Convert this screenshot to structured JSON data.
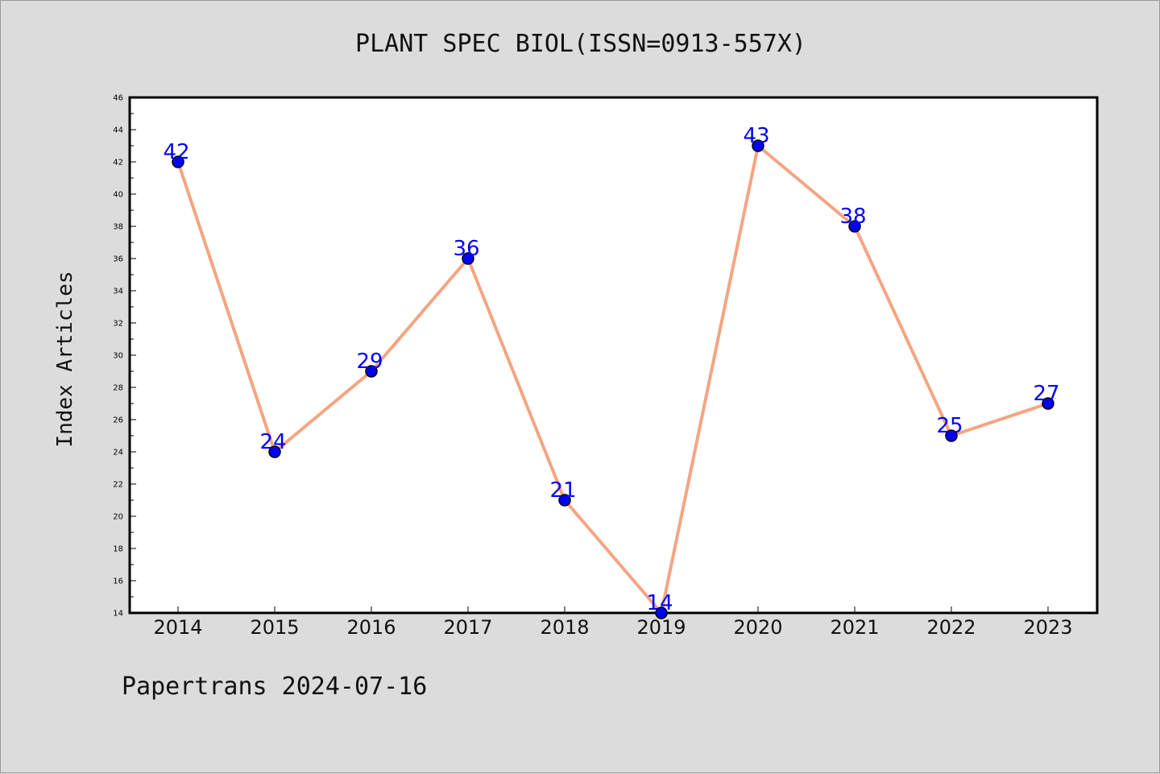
{
  "chart_data": {
    "type": "line",
    "title": "PLANT SPEC BIOL(ISSN=0913-557X)",
    "xlabel": "",
    "ylabel": "Index Articles",
    "categories": [
      "2014",
      "2015",
      "2016",
      "2017",
      "2018",
      "2019",
      "2020",
      "2021",
      "2022",
      "2023"
    ],
    "values": [
      42,
      24,
      29,
      36,
      21,
      14,
      43,
      38,
      25,
      27
    ],
    "ylim": [
      14,
      46
    ],
    "yticks": [
      14,
      16,
      18,
      20,
      22,
      24,
      26,
      28,
      30,
      32,
      34,
      36,
      38,
      40,
      42,
      44,
      46
    ],
    "data_labels": true,
    "grid": false,
    "colors": {
      "line": "#f4a582",
      "marker": "#0000ff",
      "marker_edge": "#000000",
      "data_label": "#0000ff",
      "plot_bg": "#ffffff",
      "figure_bg": "#dcdcdc"
    }
  },
  "footer": "Papertrans 2024-07-16"
}
